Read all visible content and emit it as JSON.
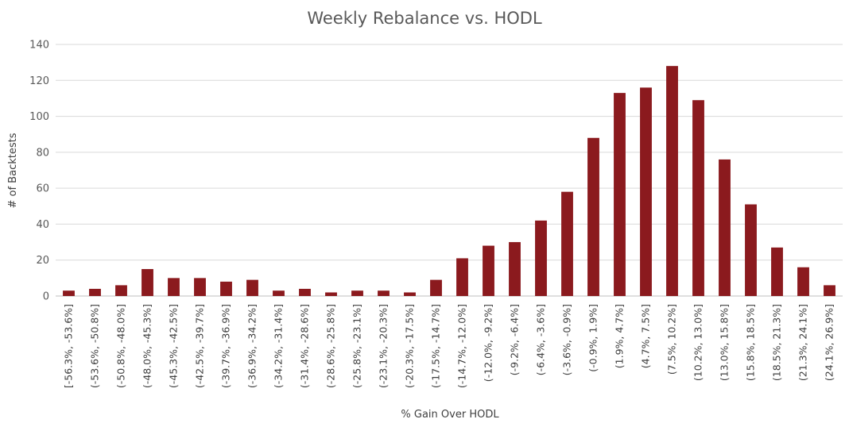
{
  "chart_data": {
    "type": "bar",
    "title": "Weekly Rebalance vs. HODL",
    "xlabel": "% Gain Over HODL",
    "ylabel": "# of Backtests",
    "ylim": [
      0,
      140
    ],
    "yticks": [
      0,
      20,
      40,
      60,
      80,
      100,
      120,
      140
    ],
    "grid": true,
    "legend": "none",
    "bar_color": "#8b1a1e",
    "categories": [
      "[-56.3%, -53.6%]",
      "(-53.6%, -50.8%]",
      "(-50.8%, -48.0%]",
      "(-48.0%, -45.3%]",
      "(-45.3%, -42.5%]",
      "(-42.5%, -39.7%]",
      "(-39.7%, -36.9%]",
      "(-36.9%, -34.2%]",
      "(-34.2%, -31.4%]",
      "(-31.4%, -28.6%]",
      "(-28.6%, -25.8%]",
      "(-25.8%, -23.1%]",
      "(-23.1%, -20.3%]",
      "(-20.3%, -17.5%]",
      "(-17.5%, -14.7%]",
      "(-14.7%, -12.0%]",
      "(-12.0%, -9.2%]",
      "(-9.2%, -6.4%]",
      "(-6.4%, -3.6%]",
      "(-3.6%, -0.9%]",
      "(-0.9%, 1.9%]",
      "(1.9%, 4.7%]",
      "(4.7%, 7.5%]",
      "(7.5%, 10.2%]",
      "(10.2%, 13.0%]",
      "(13.0%, 15.8%]",
      "(15.8%, 18.5%]",
      "(18.5%, 21.3%]",
      "(21.3%, 24.1%]",
      "(24.1%, 26.9%]"
    ],
    "values": [
      3,
      4,
      6,
      15,
      10,
      10,
      8,
      9,
      3,
      4,
      2,
      3,
      3,
      2,
      9,
      21,
      28,
      30,
      42,
      58,
      88,
      113,
      116,
      128,
      109,
      76,
      51,
      27,
      16,
      6
    ]
  }
}
